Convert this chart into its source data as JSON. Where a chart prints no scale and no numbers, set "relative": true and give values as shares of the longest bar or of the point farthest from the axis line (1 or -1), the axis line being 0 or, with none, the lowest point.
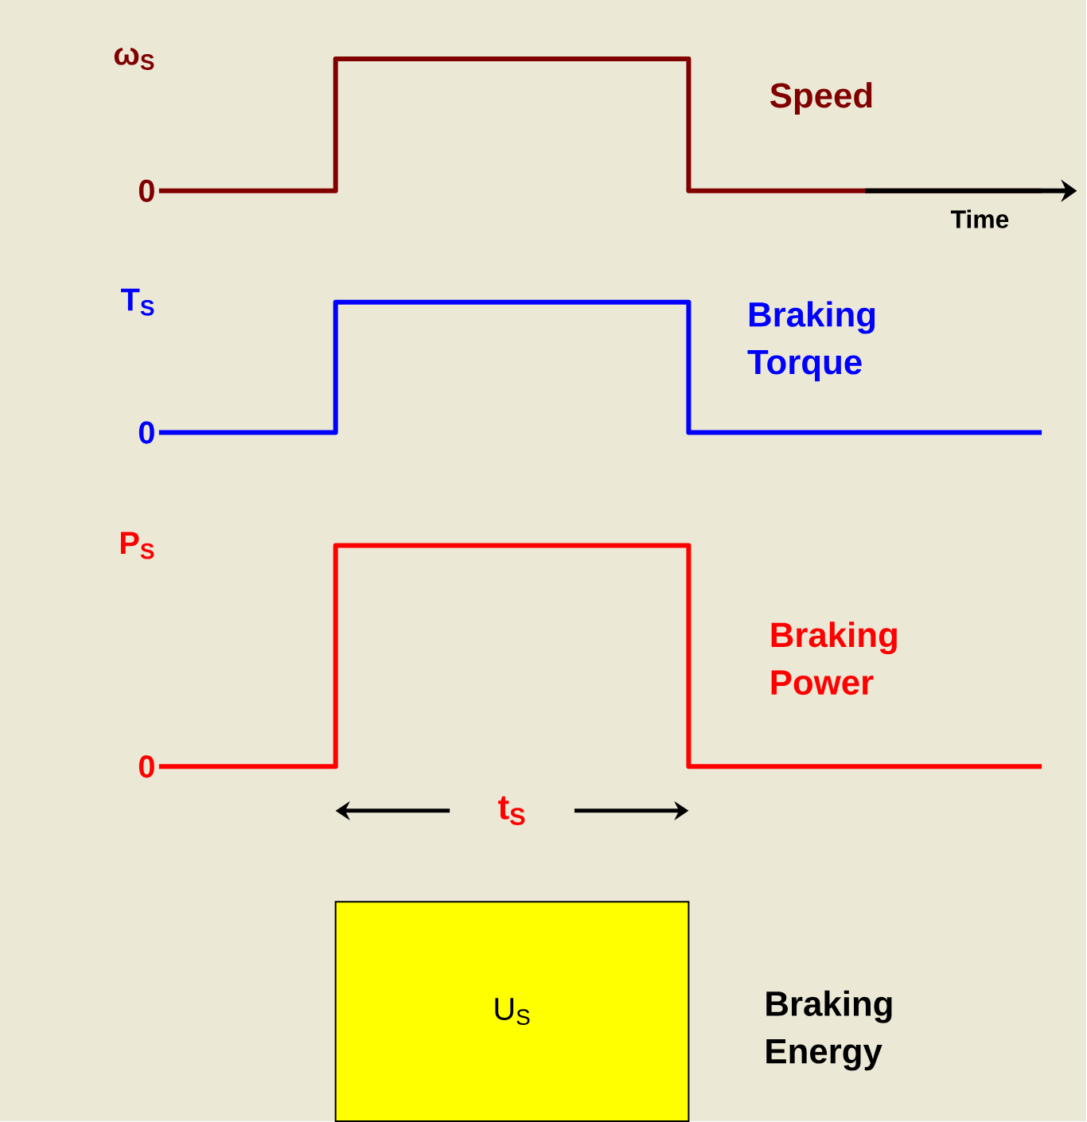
{
  "chart_data": [
    {
      "type": "step",
      "relative": true,
      "xlabel": "Time",
      "categories": [
        null,
        null,
        null,
        null,
        null,
        null,
        null,
        null,
        null,
        null,
        null
      ],
      "series": [
        {
          "name": "Speed",
          "color": "#800000",
          "values": [
            0,
            0,
            1,
            1,
            1,
            1,
            0,
            0,
            0,
            0,
            0
          ]
        }
      ],
      "annotations": [
        "0",
        "ω$_{S}$"
      ]
    },
    {
      "type": "step",
      "relative": true,
      "categories": [
        null,
        null,
        null,
        null,
        null,
        null,
        null,
        null,
        null,
        null,
        null
      ],
      "series": [
        {
          "name": "Braking Torque",
          "color": "#0000ff",
          "values": [
            0,
            0,
            1,
            1,
            1,
            1,
            0,
            0,
            0,
            0,
            0
          ]
        }
      ],
      "annotations": [
        "0",
        "T$_{S}$"
      ]
    },
    {
      "type": "step",
      "relative": true,
      "categories": [
        null,
        null,
        null,
        null,
        null,
        null,
        null,
        null,
        null,
        null,
        null
      ],
      "series": [
        {
          "name": "Braking Power",
          "color": "#ff0000",
          "values": [
            0,
            0,
            1,
            1,
            1,
            1,
            0,
            0,
            0,
            0,
            0
          ]
        }
      ],
      "annotations": [
        "0",
        "P$_{S}$",
        "t$_{S}$"
      ]
    },
    {
      "type": "other",
      "annotations": [
        "U$_{S}$",
        "Braking Energy"
      ]
    }
  ]
}
